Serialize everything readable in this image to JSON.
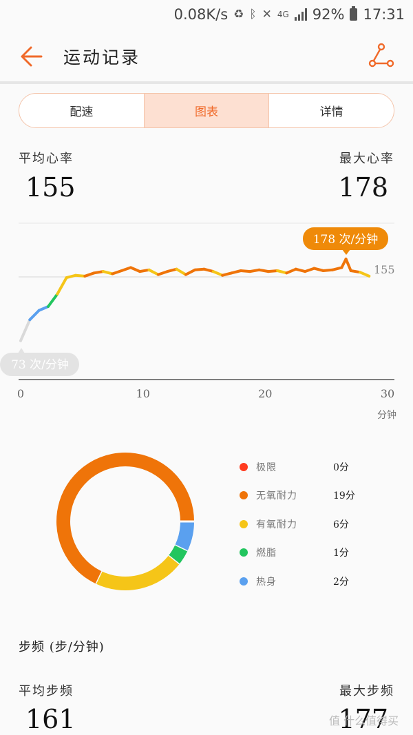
{
  "status_bar": {
    "speed": "0.08K/s",
    "network": "4G",
    "battery": "92%",
    "time": "17:31"
  },
  "header": {
    "title": "运动记录",
    "back_icon": "arrow-left-icon",
    "share_icon": "share-icon"
  },
  "tabs": [
    {
      "label": "配速",
      "active": false
    },
    {
      "label": "图表",
      "active": true
    },
    {
      "label": "详情",
      "active": false
    }
  ],
  "heart_rate": {
    "avg_label": "平均心率",
    "avg_value": "155",
    "max_label": "最大心率",
    "max_value": "178",
    "max_tooltip": "178 次/分钟",
    "min_tooltip": "73 次/分钟",
    "avg_line_label": "155",
    "x_unit": "分钟"
  },
  "chart_data": {
    "type": "line",
    "xlabel": "分钟",
    "ylabel": "",
    "xlim": [
      0,
      30
    ],
    "x_ticks": [
      "0",
      "10",
      "20",
      "30"
    ],
    "reference_line": 155,
    "max_marker": {
      "x": 26.6,
      "y": 178,
      "label": "178 次/分钟"
    },
    "min_marker": {
      "x": 0,
      "y": 73,
      "label": "73 次/分钟"
    },
    "colors": {
      "热身": "#5aa0ef",
      "燃脂": "#22c55e",
      "有氧耐力": "#f5c518",
      "无氧耐力": "#ef7409",
      "极限": "#ff3b1f",
      "idle": "#d9d9d9",
      "grid": "#e6e6e6",
      "axis": "#555555",
      "tooltip_max": "#ef8a09",
      "tooltip_min": "#e3e3e3"
    },
    "series": [
      {
        "x": [
          0,
          0.75,
          1.5,
          2.25,
          3.0,
          3.75,
          4.5,
          5.25,
          6.0,
          6.75,
          7.5,
          8.25,
          9.0,
          9.75,
          10.5,
          11.25,
          12.0,
          12.75,
          13.5,
          14.25,
          15.0,
          15.75,
          16.5,
          17.25,
          18.0,
          18.75,
          19.5,
          20.25,
          21.0,
          21.75,
          22.5,
          23.25,
          24.0,
          24.75,
          25.5,
          26.25,
          26.6,
          27.0,
          27.75,
          28.5
        ],
        "y": [
          73,
          100,
          112,
          117,
          133,
          154,
          157,
          156,
          160,
          162,
          159,
          163,
          167,
          162,
          164,
          158,
          162,
          165,
          158,
          164,
          165,
          162,
          157,
          160,
          163,
          162,
          164,
          162,
          163,
          160,
          165,
          162,
          166,
          163,
          164,
          167,
          178,
          163,
          161,
          156
        ],
        "zones": [
          "idle",
          "idle",
          "热身",
          "热身",
          "燃脂",
          "有氧耐力",
          "有氧耐力",
          "有氧耐力",
          "无氧耐力",
          "无氧耐力",
          "有氧耐力",
          "无氧耐力",
          "无氧耐力",
          "无氧耐力",
          "无氧耐力",
          "有氧耐力",
          "无氧耐力",
          "无氧耐力",
          "有氧耐力",
          "无氧耐力",
          "无氧耐力",
          "无氧耐力",
          "有氧耐力",
          "无氧耐力",
          "无氧耐力",
          "无氧耐力",
          "无氧耐力",
          "无氧耐力",
          "无氧耐力",
          "有氧耐力",
          "无氧耐力",
          "无氧耐力",
          "无氧耐力",
          "无氧耐力",
          "无氧耐力",
          "无氧耐力",
          "无氧耐力",
          "无氧耐力",
          "无氧耐力",
          "有氧耐力"
        ]
      }
    ]
  },
  "zones": {
    "donut_order": [
      "热身",
      "燃脂",
      "有氧耐力",
      "无氧耐力"
    ],
    "items": [
      {
        "name": "极限",
        "value": "0分",
        "minutes": 0,
        "color": "#ff3b1f"
      },
      {
        "name": "无氧耐力",
        "value": "19分",
        "minutes": 19,
        "color": "#ef7409"
      },
      {
        "name": "有氧耐力",
        "value": "6分",
        "minutes": 6,
        "color": "#f5c518"
      },
      {
        "name": "燃脂",
        "value": "1分",
        "minutes": 1,
        "color": "#22c55e"
      },
      {
        "name": "热身",
        "value": "2分",
        "minutes": 2,
        "color": "#5aa0ef"
      }
    ]
  },
  "cadence": {
    "section_title": "步频 (步/分钟)",
    "avg_label": "平均步频",
    "avg_value": "161",
    "max_label": "最大步频",
    "max_value": "177"
  },
  "watermark": "值 什么值得买"
}
